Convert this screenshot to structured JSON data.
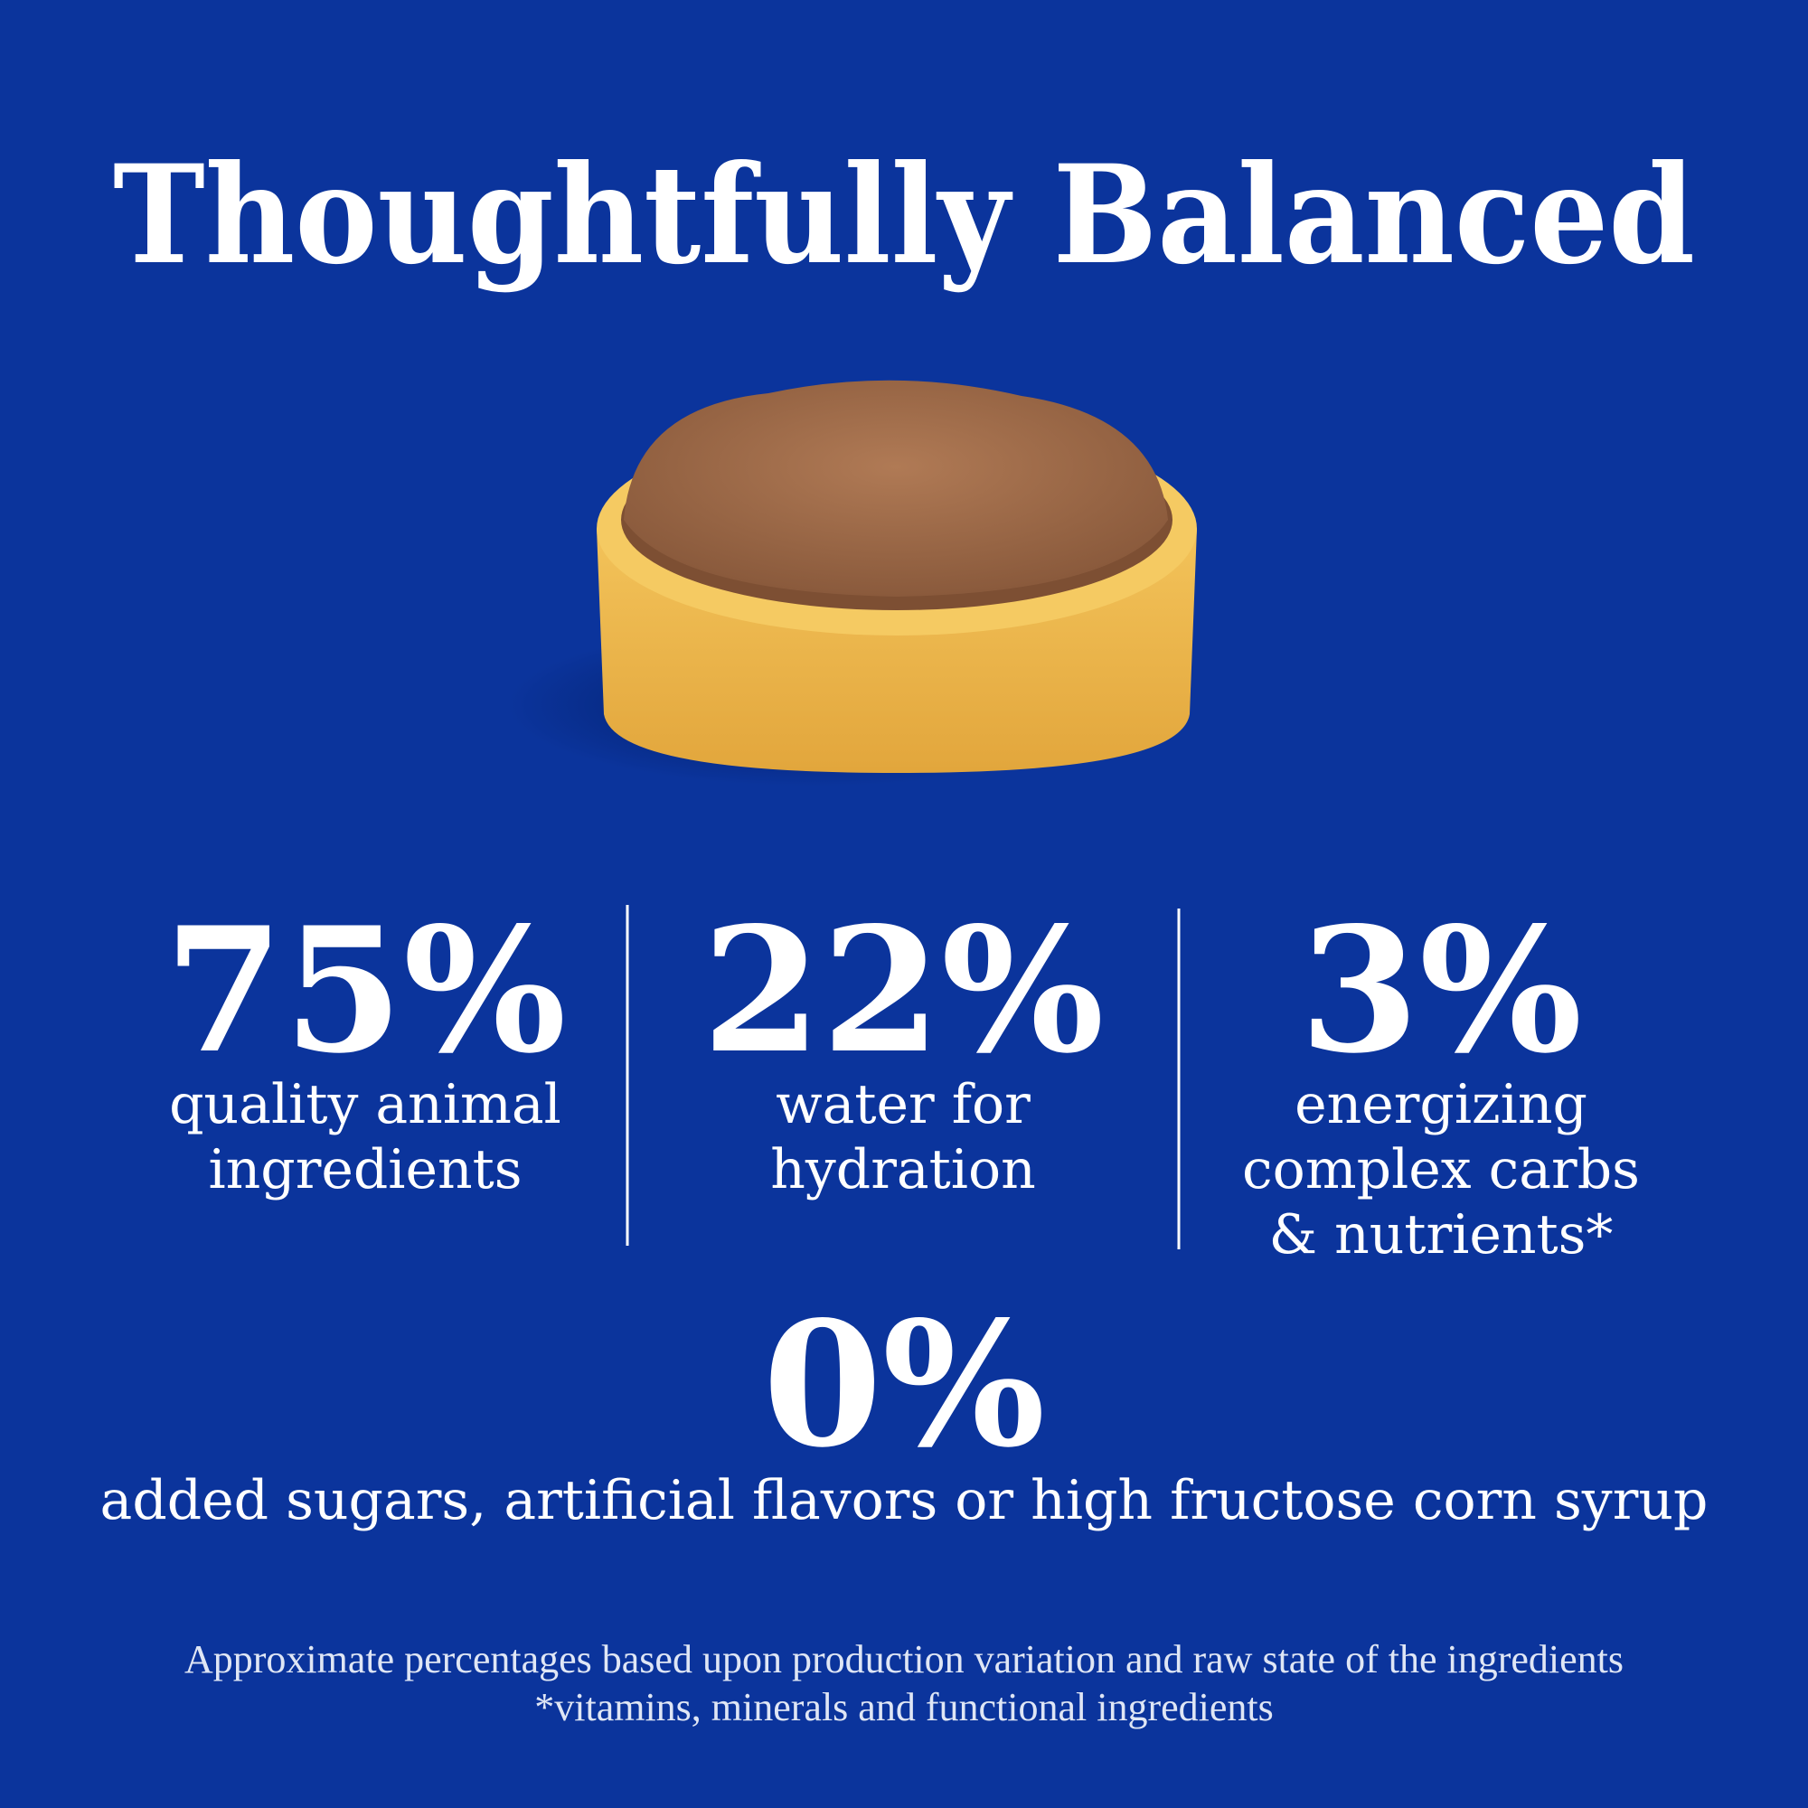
{
  "title": "Thoughtfully Balanced",
  "stats": [
    {
      "value": "75%",
      "lines": [
        "quality animal",
        "ingredients"
      ]
    },
    {
      "value": "22%",
      "lines": [
        "water for",
        "hydration"
      ]
    },
    {
      "value": "3%",
      "lines": [
        "energizing",
        "complex carbs",
        "& nutrients*"
      ]
    }
  ],
  "highlight": {
    "value": "0%",
    "label": "added sugars, artificial flavors or high fructose corn syrup"
  },
  "footnotes": [
    "Approximate percentages based upon production variation and raw state of the ingredients",
    "*vitamins, minerals and functional ingredients"
  ]
}
